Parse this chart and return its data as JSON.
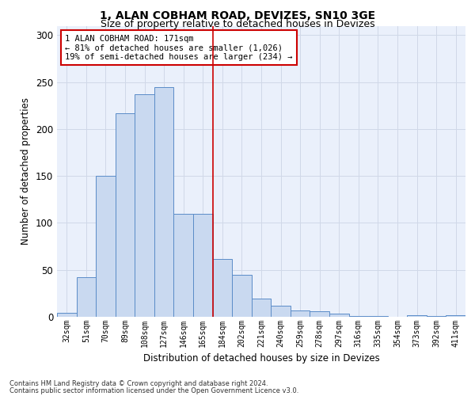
{
  "title1": "1, ALAN COBHAM ROAD, DEVIZES, SN10 3GE",
  "title2": "Size of property relative to detached houses in Devizes",
  "xlabel": "Distribution of detached houses by size in Devizes",
  "ylabel": "Number of detached properties",
  "footer1": "Contains HM Land Registry data © Crown copyright and database right 2024.",
  "footer2": "Contains public sector information licensed under the Open Government Licence v3.0.",
  "annotation_title": "1 ALAN COBHAM ROAD: 171sqm",
  "annotation_line1": "← 81% of detached houses are smaller (1,026)",
  "annotation_line2": "19% of semi-detached houses are larger (234) →",
  "bar_color": "#c9d9f0",
  "bar_edge_color": "#5b8cc8",
  "vline_color": "#cc0000",
  "annotation_box_edge": "#cc0000",
  "grid_color": "#d0d8e8",
  "bg_color": "#eaf0fb",
  "categories": [
    "32sqm",
    "51sqm",
    "70sqm",
    "89sqm",
    "108sqm",
    "127sqm",
    "146sqm",
    "165sqm",
    "184sqm",
    "202sqm",
    "221sqm",
    "240sqm",
    "259sqm",
    "278sqm",
    "297sqm",
    "316sqm",
    "335sqm",
    "354sqm",
    "373sqm",
    "392sqm",
    "411sqm"
  ],
  "bar_heights": [
    4,
    42,
    150,
    217,
    237,
    245,
    110,
    110,
    62,
    45,
    19,
    12,
    7,
    6,
    3,
    1,
    1,
    0,
    2,
    1,
    2
  ],
  "vline_x": 7.5,
  "xlim_left": -0.5,
  "xlim_right": 20.5,
  "ylim": [
    0,
    310
  ],
  "title1_fontsize": 10,
  "title2_fontsize": 9
}
